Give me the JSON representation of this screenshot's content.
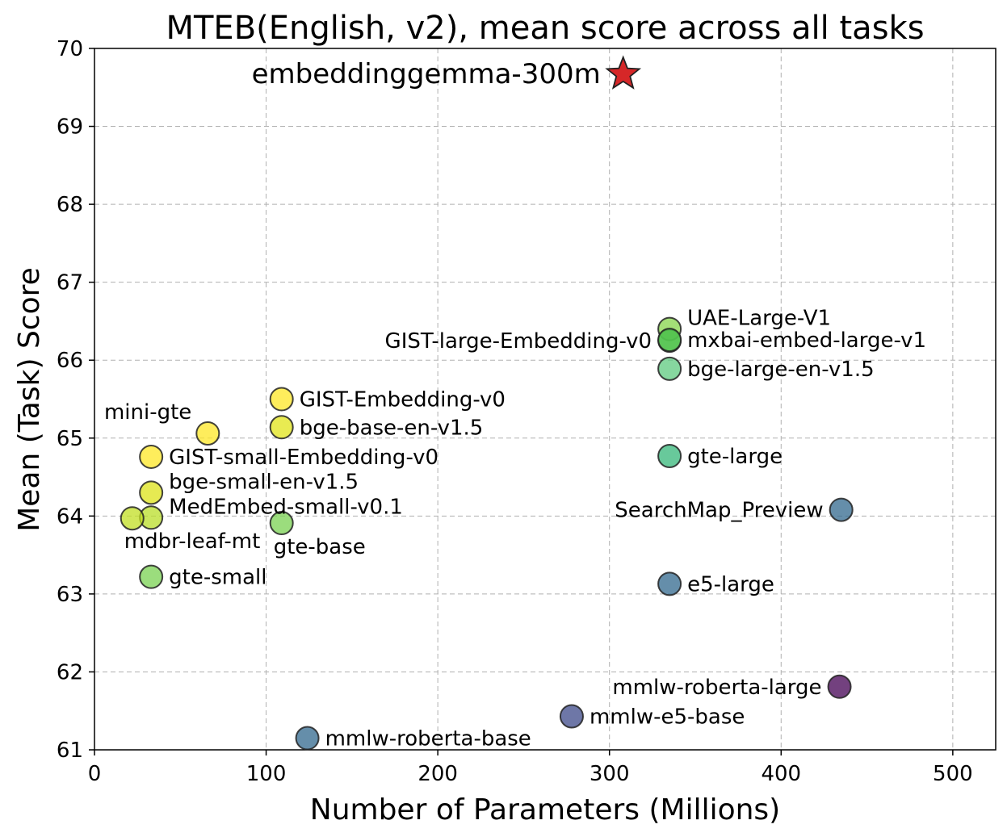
{
  "chart_data": {
    "type": "scatter",
    "title": "MTEB(English, v2), mean score across all tasks",
    "xlabel": "Number of Parameters (Millions)",
    "ylabel": "Mean (Task) Score",
    "xlim": [
      0,
      525
    ],
    "ylim": [
      61,
      70
    ],
    "xticks": [
      0,
      100,
      200,
      300,
      400,
      500
    ],
    "yticks": [
      61,
      62,
      63,
      64,
      65,
      66,
      67,
      68,
      69,
      70
    ],
    "grid": true,
    "points": [
      {
        "label": "embeddinggemma-300m",
        "x": 308,
        "y": 69.67,
        "color": "#d62728",
        "marker": "star",
        "label_pos": "left-large"
      },
      {
        "label": "UAE-Large-V1",
        "x": 335,
        "y": 66.4,
        "color": "#86d549",
        "marker": "circle",
        "label_pos": "upper-right"
      },
      {
        "label": "GIST-large-Embedding-v0",
        "x": 335,
        "y": 66.25,
        "color": "#5ec962",
        "marker": "circle",
        "label_pos": "left"
      },
      {
        "label": "mxbai-embed-large-v1",
        "x": 335,
        "y": 66.26,
        "color": "#4fc14a",
        "marker": "circle",
        "label_pos": "right"
      },
      {
        "label": "bge-large-en-v1.5",
        "x": 335,
        "y": 65.89,
        "color": "#5ec97f",
        "marker": "circle",
        "label_pos": "right"
      },
      {
        "label": "gte-large",
        "x": 335,
        "y": 64.77,
        "color": "#35b779",
        "marker": "circle",
        "label_pos": "right"
      },
      {
        "label": "SearchMap_Preview",
        "x": 435,
        "y": 64.08,
        "color": "#31688e",
        "marker": "circle",
        "label_pos": "left"
      },
      {
        "label": "e5-large",
        "x": 335,
        "y": 63.13,
        "color": "#31688e",
        "marker": "circle",
        "label_pos": "right"
      },
      {
        "label": "mmlw-roberta-large",
        "x": 434,
        "y": 61.81,
        "color": "#440154",
        "marker": "circle",
        "label_pos": "left"
      },
      {
        "label": "mmlw-e5-base",
        "x": 278,
        "y": 61.43,
        "color": "#3e4989",
        "marker": "circle",
        "label_pos": "right"
      },
      {
        "label": "mmlw-roberta-base",
        "x": 124,
        "y": 61.15,
        "color": "#31688e",
        "marker": "circle",
        "label_pos": "right"
      },
      {
        "label": "GIST-Embedding-v0",
        "x": 109,
        "y": 65.5,
        "color": "#fde725",
        "marker": "circle",
        "label_pos": "right"
      },
      {
        "label": "bge-base-en-v1.5",
        "x": 109,
        "y": 65.14,
        "color": "#e2e418",
        "marker": "circle",
        "label_pos": "right"
      },
      {
        "label": "mini-gte",
        "x": 66,
        "y": 65.06,
        "color": "#fde725",
        "marker": "circle",
        "label_pos": "upper-left"
      },
      {
        "label": "GIST-small-Embedding-v0",
        "x": 33,
        "y": 64.76,
        "color": "#fde725",
        "marker": "circle",
        "label_pos": "right"
      },
      {
        "label": "bge-small-en-v1.5",
        "x": 33,
        "y": 64.3,
        "color": "#dde318",
        "marker": "circle",
        "label_pos": "upper-right"
      },
      {
        "label": "MedEmbed-small-v0.1",
        "x": 33,
        "y": 63.98,
        "color": "#bade28",
        "marker": "circle",
        "label_pos": "upper-right"
      },
      {
        "label": "mdbr-leaf-mt",
        "x": 22,
        "y": 63.97,
        "color": "#c2df23",
        "marker": "circle",
        "label_pos": "below"
      },
      {
        "label": "gte-base",
        "x": 109,
        "y": 63.91,
        "color": "#7ad151",
        "marker": "circle",
        "label_pos": "below"
      },
      {
        "label": "gte-small",
        "x": 33,
        "y": 63.22,
        "color": "#7ad151",
        "marker": "circle",
        "label_pos": "right"
      }
    ]
  }
}
